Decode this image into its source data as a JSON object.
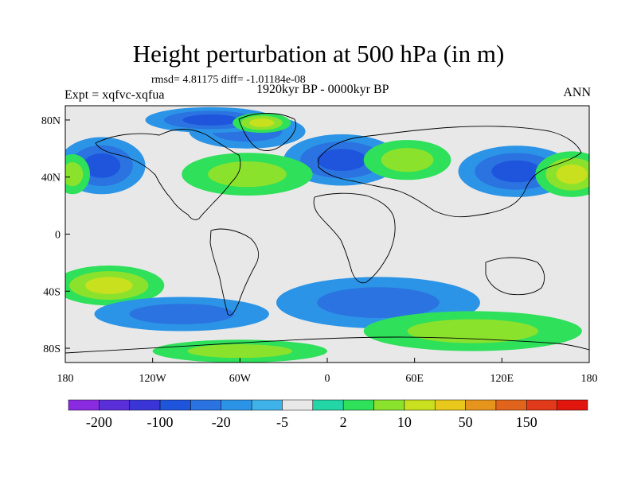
{
  "title": "Height perturbation at 500 hPa (in m)",
  "stats": "rmsd= 4.81175 diff= -1.01184e-08",
  "left_label": "Expt = xqfvc-xqfua",
  "center_label": "1920kyr BP - 0000kyr BP",
  "right_label": "ANN",
  "map": {
    "lat_ticks": [
      {
        "lat": 80,
        "label": "80N"
      },
      {
        "lat": 40,
        "label": "40N"
      },
      {
        "lat": 0,
        "label": "0"
      },
      {
        "lat": -40,
        "label": "40S"
      },
      {
        "lat": -80,
        "label": "80S"
      }
    ],
    "lon_ticks": [
      {
        "lon": -180,
        "label": "180"
      },
      {
        "lon": -120,
        "label": "120W"
      },
      {
        "lon": -60,
        "label": "60W"
      },
      {
        "lon": 0,
        "label": "0"
      },
      {
        "lon": 60,
        "label": "60E"
      },
      {
        "lon": 120,
        "label": "120E"
      },
      {
        "lon": 180,
        "label": "180"
      }
    ],
    "background_color": "#e8e8e8",
    "anomalies": [
      {
        "lon": -155,
        "lat": 48,
        "rlon": 30,
        "rlat": 20,
        "level": -3
      },
      {
        "lon": -55,
        "lat": 72,
        "rlon": 40,
        "rlat": 12,
        "level": -2
      },
      {
        "lon": -80,
        "lat": 80,
        "rlon": 45,
        "rlat": 9,
        "level": -3
      },
      {
        "lon": 10,
        "lat": 52,
        "rlon": 40,
        "rlat": 18,
        "level": -3
      },
      {
        "lon": 130,
        "lat": 44,
        "rlon": 40,
        "rlat": 18,
        "level": -3
      },
      {
        "lon": -55,
        "lat": 42,
        "rlon": 45,
        "rlat": 15,
        "level": 2
      },
      {
        "lon": 55,
        "lat": 52,
        "rlon": 30,
        "rlat": 14,
        "level": 2
      },
      {
        "lon": 168,
        "lat": 42,
        "rlon": 25,
        "rlat": 16,
        "level": 3
      },
      {
        "lon": -175,
        "lat": 42,
        "rlon": 12,
        "rlat": 14,
        "level": 2
      },
      {
        "lon": -45,
        "lat": 78,
        "rlon": 20,
        "rlat": 7,
        "level": 3
      },
      {
        "lon": -150,
        "lat": -36,
        "rlon": 38,
        "rlat": 14,
        "level": 3
      },
      {
        "lon": -100,
        "lat": -56,
        "rlon": 60,
        "rlat": 12,
        "level": -2
      },
      {
        "lon": 35,
        "lat": -48,
        "rlon": 70,
        "rlat": 18,
        "level": -2
      },
      {
        "lon": 100,
        "lat": -68,
        "rlon": 75,
        "rlat": 14,
        "level": 2
      },
      {
        "lon": -60,
        "lat": -82,
        "rlon": 60,
        "rlat": 8,
        "level": 2
      }
    ],
    "grid_color": "#000000"
  },
  "colorbar": {
    "colors": [
      "#8a2be2",
      "#5a2ed8",
      "#3a35d6",
      "#1f55dc",
      "#2a73e0",
      "#2c94e6",
      "#3fb2ea",
      "#e8e8e8",
      "#22d6a6",
      "#2ee05a",
      "#8be22d",
      "#c8e01e",
      "#e8c81a",
      "#e6941c",
      "#e0641c",
      "#e03a1a",
      "#e0160f"
    ],
    "labels": [
      "-200",
      "-100",
      "-20",
      "-5",
      "2",
      "10",
      "50",
      "150"
    ]
  }
}
